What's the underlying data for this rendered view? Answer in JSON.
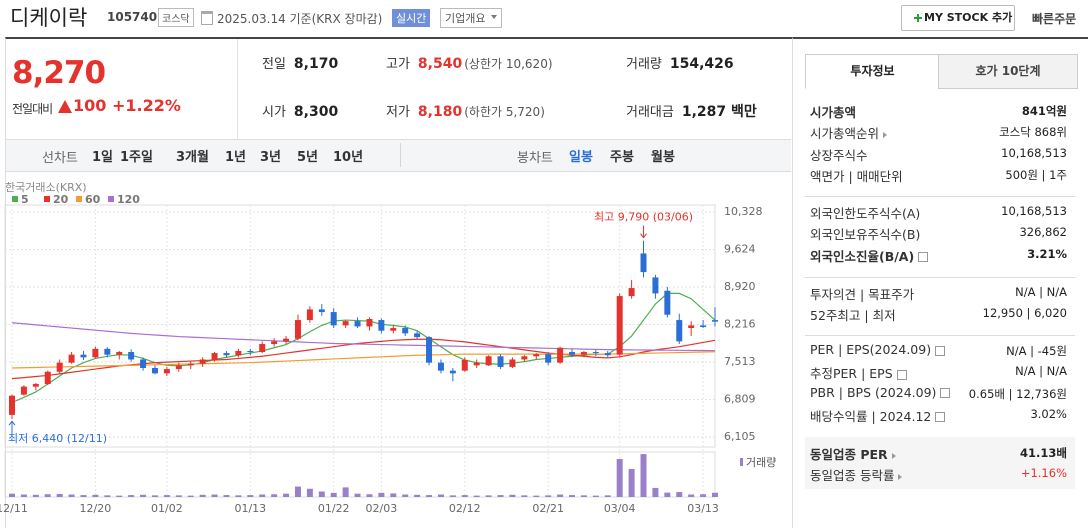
{
  "header": {
    "name": "디케이락",
    "code": "105740",
    "market": "코스닥",
    "date": "2025.03.14 기준(KRX 장마감)",
    "realtime": "실시간",
    "company": "기업개요",
    "my_stock": "MY STOCK 추가",
    "quick_order": "빠른주문"
  },
  "quote": {
    "price": "8,270",
    "change_label": "전일대비",
    "change": "100",
    "change_rate": "+1.22%",
    "stats": [
      {
        "label": "전일",
        "value": "8,170"
      },
      {
        "label": "고가",
        "value": "8,540",
        "note": "(상한가 10,620)"
      },
      {
        "label": "거래량",
        "value": "154,426"
      },
      {
        "label": "시가",
        "value": "8,300"
      },
      {
        "label": "저가",
        "value": "8,180",
        "note": "(하한가 5,720)"
      },
      {
        "label": "거래대금",
        "value": "1,287 백만"
      }
    ]
  },
  "period_bar": {
    "line_label": "선차트",
    "line_periods": [
      "1일",
      "1주일",
      "3개월",
      "1년",
      "3년",
      "5년",
      "10년"
    ],
    "candle_label": "봉차트",
    "candle_periods": [
      "일봉",
      "주봉",
      "월봉"
    ]
  },
  "chart": {
    "type": "candlestick",
    "source": "한국거래소(KRX)",
    "volume_label": "거래량",
    "high_label": "최고 9,790 (03/06)",
    "low_label": "최저 6,440 (12/11)",
    "categories": [
      "12/11",
      null,
      null,
      null,
      null,
      null,
      null,
      "12/20",
      null,
      null,
      null,
      null,
      null,
      "01/02",
      null,
      null,
      null,
      null,
      null,
      null,
      "01/13",
      null,
      null,
      null,
      null,
      null,
      null,
      "01/22",
      null,
      null,
      null,
      "02/03",
      null,
      null,
      null,
      null,
      null,
      null,
      "02/12",
      null,
      null,
      null,
      null,
      null,
      null,
      "02/21",
      null,
      null,
      null,
      null,
      null,
      "03/04",
      null,
      null,
      null,
      null,
      null,
      null,
      "03/13",
      null
    ],
    "ylim": [
      6105,
      10328
    ],
    "yticks": [
      {
        "value": 10328,
        "label": "10,328"
      },
      {
        "value": 9624,
        "label": "9,624"
      },
      {
        "value": 8920,
        "label": "8,920"
      },
      {
        "value": 8216,
        "label": "8,216"
      },
      {
        "value": 7513,
        "label": "7,513"
      },
      {
        "value": 6809,
        "label": "6,809"
      },
      {
        "value": 6105,
        "label": "6,105"
      }
    ],
    "up_color": "#e5322d",
    "down_color": "#2b6fd6",
    "volume_color": "#9a80c8",
    "vlim": [
      0,
      1600000
    ],
    "open": [
      6520,
      6900,
      7050,
      7100,
      7330,
      7500,
      7650,
      7600,
      7760,
      7650,
      7700,
      7560,
      7400,
      7300,
      7380,
      7450,
      7480,
      7560,
      7680,
      7640,
      7720,
      7700,
      7850,
      7900,
      7950,
      8300,
      8500,
      8450,
      8200,
      8280,
      8180,
      8300,
      8100,
      8150,
      8050,
      7980,
      7500,
      7350,
      7350,
      7450,
      7450,
      7620,
      7420,
      7560,
      7620,
      7660,
      7500,
      7700,
      7650,
      7700,
      7680,
      7650,
      8750,
      9550,
      9100,
      8850,
      8300,
      8150,
      8200,
      8300
    ],
    "high": [
      6900,
      7080,
      7120,
      7350,
      7560,
      7700,
      7720,
      7800,
      7790,
      7720,
      7750,
      7600,
      7450,
      7420,
      7500,
      7520,
      7600,
      7700,
      7720,
      7760,
      7760,
      7900,
      7960,
      8000,
      8400,
      8560,
      8600,
      8520,
      8300,
      8350,
      8350,
      8330,
      8200,
      8200,
      8100,
      8000,
      7560,
      7400,
      7600,
      7560,
      7640,
      7660,
      7600,
      7640,
      7680,
      7700,
      7800,
      7760,
      7720,
      7740,
      7720,
      8800,
      9050,
      9790,
      9150,
      8920,
      8420,
      8280,
      8300,
      8540
    ],
    "low": [
      6440,
      6880,
      6980,
      7080,
      7300,
      7480,
      7550,
      7580,
      7600,
      7560,
      7520,
      7350,
      7280,
      7250,
      7330,
      7380,
      7420,
      7520,
      7600,
      7600,
      7640,
      7680,
      7800,
      7850,
      7920,
      8250,
      8380,
      8150,
      8150,
      8150,
      8100,
      8050,
      8050,
      8000,
      7950,
      7450,
      7300,
      7150,
      7330,
      7400,
      7440,
      7380,
      7400,
      7520,
      7560,
      7450,
      7480,
      7600,
      7600,
      7620,
      7600,
      7600,
      8700,
      9100,
      8700,
      8350,
      7850,
      8000,
      8150,
      8180
    ],
    "close": [
      6880,
      7050,
      7100,
      7330,
      7500,
      7650,
      7600,
      7760,
      7650,
      7700,
      7560,
      7400,
      7300,
      7380,
      7450,
      7480,
      7560,
      7680,
      7640,
      7720,
      7700,
      7850,
      7900,
      7950,
      8300,
      8500,
      8450,
      8200,
      8280,
      8180,
      8320,
      8100,
      8150,
      8050,
      7980,
      7500,
      7350,
      7300,
      7550,
      7500,
      7620,
      7420,
      7560,
      7620,
      7660,
      7500,
      7780,
      7650,
      7700,
      7680,
      7640,
      8750,
      8900,
      9200,
      8800,
      8400,
      7900,
      8200,
      8170,
      8270
    ],
    "volume": [
      120000,
      90000,
      80000,
      100000,
      110000,
      90000,
      70000,
      80000,
      60000,
      50000,
      70000,
      80000,
      60000,
      70000,
      60000,
      50000,
      80000,
      90000,
      70000,
      60000,
      70000,
      90000,
      100000,
      120000,
      380000,
      300000,
      200000,
      150000,
      350000,
      120000,
      100000,
      150000,
      130000,
      90000,
      80000,
      70000,
      90000,
      60000,
      70000,
      50000,
      60000,
      70000,
      80000,
      60000,
      50000,
      60000,
      90000,
      70000,
      60000,
      50000,
      60000,
      1380000,
      1020000,
      1560000,
      330000,
      160000,
      180000,
      90000,
      100000,
      154426
    ],
    "moving_averages": [
      {
        "name": "5",
        "color": "#4caf50",
        "values": [
          6750,
          6850,
          6950,
          7100,
          7250,
          7400,
          7500,
          7580,
          7620,
          7650,
          7640,
          7580,
          7500,
          7450,
          7440,
          7460,
          7500,
          7560,
          7600,
          7640,
          7680,
          7720,
          7780,
          7840,
          7950,
          8080,
          8200,
          8280,
          8300,
          8290,
          8280,
          8220,
          8200,
          8170,
          8100,
          7950,
          7800,
          7650,
          7550,
          7500,
          7480,
          7470,
          7490,
          7520,
          7560,
          7580,
          7600,
          7620,
          7640,
          7660,
          7660,
          7800,
          8000,
          8300,
          8600,
          8800,
          8800,
          8700,
          8500,
          8300
        ]
      },
      {
        "name": "20",
        "color": "#e5322d",
        "values": [
          7200,
          7220,
          7240,
          7260,
          7290,
          7320,
          7350,
          7380,
          7410,
          7440,
          7460,
          7480,
          7500,
          7510,
          7520,
          7530,
          7540,
          7550,
          7560,
          7580,
          7600,
          7620,
          7650,
          7680,
          7710,
          7740,
          7770,
          7800,
          7830,
          7860,
          7880,
          7900,
          7920,
          7930,
          7940,
          7940,
          7930,
          7910,
          7890,
          7860,
          7830,
          7800,
          7770,
          7740,
          7710,
          7680,
          7660,
          7640,
          7620,
          7600,
          7590,
          7610,
          7650,
          7700,
          7740,
          7770,
          7800,
          7840,
          7880,
          7920
        ]
      },
      {
        "name": "60",
        "color": "#f39c32",
        "values": [
          7400,
          7405,
          7410,
          7415,
          7420,
          7425,
          7430,
          7435,
          7440,
          7445,
          7450,
          7455,
          7460,
          7465,
          7470,
          7475,
          7480,
          7485,
          7490,
          7495,
          7500,
          7510,
          7520,
          7530,
          7540,
          7550,
          7560,
          7570,
          7580,
          7590,
          7600,
          7610,
          7620,
          7630,
          7640,
          7645,
          7650,
          7655,
          7660,
          7660,
          7660,
          7660,
          7660,
          7660,
          7660,
          7660,
          7660,
          7660,
          7660,
          7660,
          7660,
          7665,
          7670,
          7675,
          7680,
          7685,
          7690,
          7695,
          7700,
          7705
        ]
      },
      {
        "name": "120",
        "color": "#a970d0",
        "values": [
          8250,
          8230,
          8210,
          8190,
          8170,
          8150,
          8130,
          8110,
          8090,
          8070,
          8050,
          8035,
          8020,
          8005,
          7990,
          7980,
          7970,
          7960,
          7950,
          7940,
          7930,
          7920,
          7910,
          7900,
          7890,
          7880,
          7870,
          7860,
          7855,
          7850,
          7845,
          7840,
          7835,
          7830,
          7825,
          7820,
          7815,
          7810,
          7805,
          7800,
          7795,
          7790,
          7785,
          7780,
          7775,
          7770,
          7765,
          7760,
          7755,
          7750,
          7745,
          7742,
          7740,
          7738,
          7736,
          7734,
          7732,
          7730,
          7728,
          7725
        ]
      }
    ]
  },
  "investment_info": {
    "tabs": [
      "투자정보",
      "호가 10단계"
    ],
    "sections": [
      [
        {
          "label": "시가총액",
          "value": "841억원",
          "bold": true
        },
        {
          "label": "시가총액순위",
          "value": "코스닥 868위",
          "arrow": true
        },
        {
          "label": "상장주식수",
          "value": "10,168,513"
        },
        {
          "label": "액면가 | 매매단위",
          "value": "500원 | 1주"
        }
      ],
      [
        {
          "label": "외국인한도주식수(A)",
          "value": "10,168,513"
        },
        {
          "label": "외국인보유주식수(B)",
          "value": "326,862"
        },
        {
          "label": "외국인소진율(B/A)",
          "value": "3.21%",
          "bold": true,
          "help": true
        }
      ],
      [
        {
          "label": "투자의견 | 목표주가",
          "value": "N/A | N/A"
        },
        {
          "label": "52주최고 | 최저",
          "value": "12,950 | 6,020"
        }
      ],
      [
        {
          "label": "PER | EPS(2024.09)",
          "value": "N/A | -45원",
          "help": true
        },
        {
          "label": "추정PER | EPS",
          "value": "N/A | N/A",
          "help": true
        },
        {
          "label": "PBR | BPS (2024.09)",
          "value": "0.65배 | 12,736원",
          "help": true
        },
        {
          "label": "배당수익률 | 2024.12",
          "value": "3.02%",
          "help": true
        }
      ],
      [
        {
          "label": "동일업종 PER",
          "value": "41.13배",
          "bold": true,
          "arrow": true
        },
        {
          "label": "동일업종 등락률",
          "value": "+1.16%",
          "arrow": true,
          "color": "#e5322d"
        }
      ]
    ]
  }
}
